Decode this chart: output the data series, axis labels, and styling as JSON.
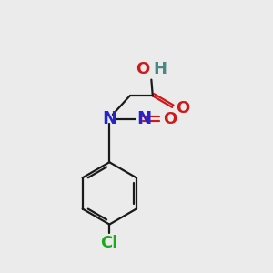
{
  "bg_color": "#ebebeb",
  "bond_color": "#1a1a1a",
  "N_color": "#2424cc",
  "O_color": "#cc1a1a",
  "Cl_color": "#1aaa1a",
  "H_color": "#4a8888",
  "line_width": 1.6,
  "dbl_sep": 0.07,
  "font_size": 11,
  "font_size_label": 13,
  "figsize": [
    3.0,
    3.0
  ],
  "dpi": 100,
  "xlim": [
    0,
    10
  ],
  "ylim": [
    0,
    10
  ]
}
